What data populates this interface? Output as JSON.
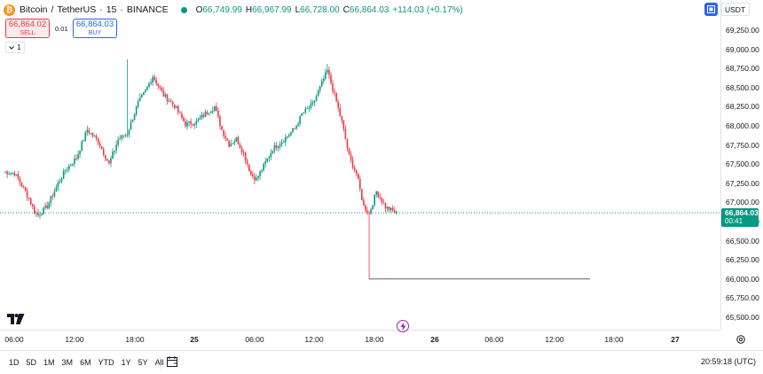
{
  "header": {
    "symbol": "Bitcoin",
    "quote": "TetherUS",
    "interval": "15",
    "exchange": "BINANCE",
    "sep": "/",
    "dot": "·",
    "ohlc": {
      "o_label": "O",
      "o": "66,749.99",
      "h_label": "H",
      "h": "66,967.99",
      "l_label": "L",
      "l": "66,728.00",
      "c_label": "C",
      "c": "66,864.03",
      "change": "+114.03 (+0.17%)"
    },
    "logo_glyph": "₿"
  },
  "trade": {
    "sell_price": "66,864.02",
    "sell_label": "SELL",
    "spread": "0.01",
    "buy_price": "66,864.03",
    "buy_label": "BUY"
  },
  "collapse": {
    "count": "1"
  },
  "currency": "USDT",
  "price_axis": [
    "69,250.00",
    "69,000.00",
    "68,750.00",
    "68,500.00",
    "68,250.00",
    "68,000.00",
    "67,750.00",
    "67,500.00",
    "67,250.00",
    "67,000.00",
    "66,750.00",
    "66,500.00",
    "66,250.00",
    "66,000.00",
    "65,750.00",
    "65,500.00"
  ],
  "last_price": {
    "price": "66,864.03",
    "countdown": "00:41"
  },
  "time_axis": [
    {
      "label": "06:00",
      "bold": false
    },
    {
      "label": "12:00",
      "bold": false
    },
    {
      "label": "18:00",
      "bold": false
    },
    {
      "label": "25",
      "bold": true
    },
    {
      "label": "06:00",
      "bold": false
    },
    {
      "label": "12:00",
      "bold": false
    },
    {
      "label": "18:00",
      "bold": false
    },
    {
      "label": "26",
      "bold": true
    },
    {
      "label": "06:00",
      "bold": false
    },
    {
      "label": "12:00",
      "bold": false
    },
    {
      "label": "18:00",
      "bold": false
    },
    {
      "label": "27",
      "bold": true
    }
  ],
  "ranges": [
    "1D",
    "5D",
    "1M",
    "3M",
    "6M",
    "YTD",
    "1Y",
    "5Y",
    "All"
  ],
  "clock": "20:59:18 (UTC)",
  "colors": {
    "up": "#089981",
    "down": "#f23645",
    "accent": "#2962ff"
  },
  "icons": [
    "bitcoin-logo",
    "compare-icon",
    "calendar-icon",
    "gear-icon",
    "lightning-icon",
    "tradingview-logo"
  ],
  "chart_data": {
    "type": "candlestick",
    "interval": "15",
    "price_range": [
      65500,
      69250
    ],
    "horizontal_level": 66000,
    "anchors": [
      [
        0,
        67400
      ],
      [
        6,
        67380
      ],
      [
        10,
        67230
      ],
      [
        14,
        67050
      ],
      [
        17,
        66880
      ],
      [
        19,
        66830
      ],
      [
        24,
        66950
      ],
      [
        30,
        67250
      ],
      [
        34,
        67420
      ],
      [
        40,
        67580
      ],
      [
        46,
        67950
      ],
      [
        52,
        67800
      ],
      [
        58,
        67500
      ],
      [
        63,
        67820
      ],
      [
        68,
        67900
      ],
      [
        74,
        68300
      ],
      [
        78,
        68450
      ],
      [
        82,
        68650
      ],
      [
        88,
        68400
      ],
      [
        94,
        68260
      ],
      [
        100,
        68020
      ],
      [
        106,
        68050
      ],
      [
        112,
        68180
      ],
      [
        116,
        68250
      ],
      [
        120,
        67950
      ],
      [
        124,
        67760
      ],
      [
        128,
        67830
      ],
      [
        132,
        67640
      ],
      [
        136,
        67370
      ],
      [
        139,
        67300
      ],
      [
        142,
        67430
      ],
      [
        148,
        67700
      ],
      [
        154,
        67820
      ],
      [
        160,
        67960
      ],
      [
        164,
        68150
      ],
      [
        170,
        68280
      ],
      [
        174,
        68500
      ],
      [
        178,
        68720
      ],
      [
        182,
        68400
      ],
      [
        186,
        68050
      ],
      [
        190,
        67600
      ],
      [
        194,
        67380
      ],
      [
        198,
        66950
      ],
      [
        201,
        66850
      ],
      [
        205,
        67140
      ],
      [
        210,
        66940
      ],
      [
        216,
        66860
      ]
    ]
  }
}
